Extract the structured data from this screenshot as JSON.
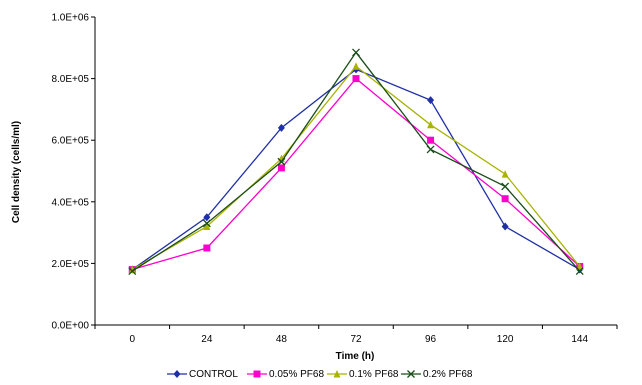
{
  "chart_data": {
    "type": "line",
    "title": "",
    "xlabel": "Time (h)",
    "ylabel": "Cell density (cells/ml)",
    "x": [
      0,
      24,
      48,
      72,
      96,
      120,
      144
    ],
    "x_tick_labels": [
      "0",
      "24",
      "48",
      "72",
      "96",
      "120",
      "144"
    ],
    "ylim": [
      0,
      1000000
    ],
    "y_ticks": [
      0,
      200000,
      400000,
      600000,
      800000,
      1000000
    ],
    "y_tick_labels": [
      "0.0E+00",
      "2.0E+05",
      "4.0E+05",
      "6.0E+05",
      "8.0E+05",
      "1.0E+06"
    ],
    "grid": false,
    "legend_position": "bottom",
    "series": [
      {
        "name": "CONTROL",
        "color": "#1f2fa8",
        "marker": "diamond",
        "values": [
          180000,
          350000,
          640000,
          830000,
          730000,
          320000,
          180000
        ]
      },
      {
        "name": "0.05% PF68",
        "color": "#ff00cc",
        "marker": "square",
        "values": [
          180000,
          250000,
          510000,
          800000,
          600000,
          410000,
          190000
        ]
      },
      {
        "name": "0.1% PF68",
        "color": "#a8b400",
        "marker": "triangle",
        "values": [
          180000,
          320000,
          540000,
          840000,
          650000,
          490000,
          190000
        ]
      },
      {
        "name": "0.2% PF68",
        "color": "#1a4d1a",
        "marker": "x",
        "values": [
          175000,
          330000,
          530000,
          885000,
          570000,
          450000,
          175000
        ]
      }
    ]
  }
}
